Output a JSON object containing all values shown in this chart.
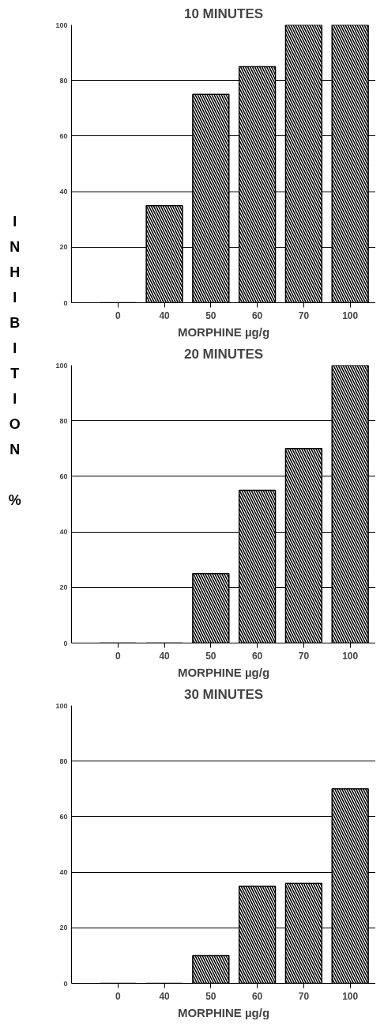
{
  "chart_data": [
    {
      "type": "bar",
      "title": "10 MINUTES",
      "xlabel": "MORPHINE µg/g",
      "ylabel": "INHIBITION %",
      "categories": [
        "0",
        "40",
        "50",
        "60",
        "70",
        "100"
      ],
      "values": [
        0,
        35,
        75,
        85,
        100,
        100
      ],
      "color": "#000000",
      "ylim": [
        0,
        100
      ],
      "yticks": [
        0,
        20,
        40,
        60,
        80,
        100
      ],
      "grid": "y"
    },
    {
      "type": "bar",
      "title": "20 MINUTES",
      "xlabel": "MORPHINE µg/g",
      "categories": [
        "0",
        "40",
        "50",
        "60",
        "70",
        "100"
      ],
      "values": [
        0,
        0,
        25,
        55,
        70,
        100
      ],
      "color": "#000000",
      "ylim": [
        0,
        100
      ],
      "yticks": [
        0,
        20,
        40,
        60,
        80,
        100
      ],
      "grid": "y"
    },
    {
      "type": "bar",
      "title": "30 MINUTES",
      "xlabel": "MORPHINE µg/g",
      "categories": [
        "0",
        "40",
        "50",
        "60",
        "70",
        "100"
      ],
      "values": [
        0,
        0,
        10,
        35,
        36,
        70
      ],
      "color": "#000000",
      "ylim": [
        0,
        100
      ],
      "yticks": [
        0,
        20,
        40,
        60,
        80,
        100
      ],
      "grid": "y"
    }
  ]
}
